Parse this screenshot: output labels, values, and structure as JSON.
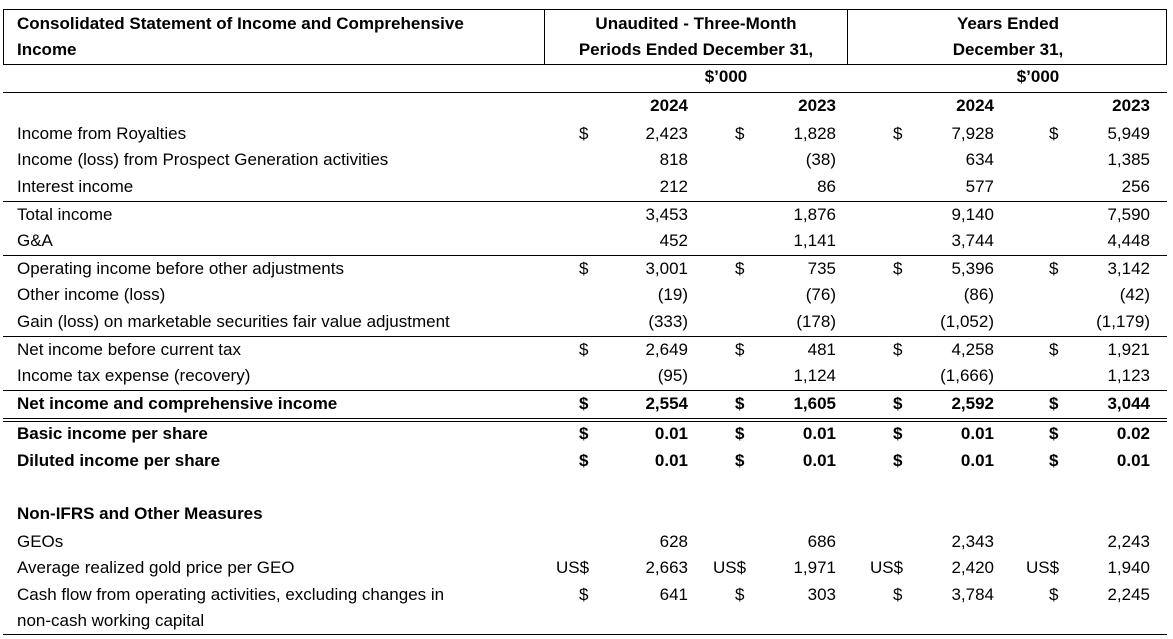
{
  "header": {
    "title_line1": "Consolidated Statement of Income and Comprehensive",
    "title_line2": "Income",
    "q_line1": "Unaudited - Three-Month",
    "q_line2": "Periods Ended December 31,",
    "q_unit": "$’000",
    "y_line1": "Years Ended",
    "y_line2": "December 31,",
    "y_unit": "$’000",
    "col1": "2024",
    "col2": "2023",
    "col3": "2024",
    "col4": "2023"
  },
  "rows": [
    {
      "label": "Income from Royalties",
      "cur": [
        "$",
        "$",
        "$",
        "$"
      ],
      "v": [
        "2,423",
        "1,828",
        "7,928",
        "5,949"
      ]
    },
    {
      "label": "Income (loss) from Prospect Generation activities",
      "cur": [
        "",
        "",
        "",
        ""
      ],
      "v": [
        "818",
        "(38)",
        "634",
        "1,385"
      ]
    },
    {
      "label": "Interest income",
      "cur": [
        "",
        "",
        "",
        ""
      ],
      "v": [
        "212",
        "86",
        "577",
        "256"
      ]
    },
    {
      "label": "Total income",
      "cur": [
        "",
        "",
        "",
        ""
      ],
      "v": [
        "3,453",
        "1,876",
        "9,140",
        "7,590"
      ]
    },
    {
      "label": "G&A",
      "cur": [
        "",
        "",
        "",
        ""
      ],
      "v": [
        "452",
        "1,141",
        "3,744",
        "4,448"
      ]
    },
    {
      "label": "Operating income before other adjustments",
      "cur": [
        "$",
        "$",
        "$",
        "$"
      ],
      "v": [
        "3,001",
        "735",
        "5,396",
        "3,142"
      ]
    },
    {
      "label": "Other income (loss)",
      "cur": [
        "",
        "",
        "",
        ""
      ],
      "v": [
        "(19)",
        "(76)",
        "(86)",
        "(42)"
      ]
    },
    {
      "label": "Gain (loss) on marketable securities fair value adjustment",
      "cur": [
        "",
        "",
        "",
        ""
      ],
      "v": [
        "(333)",
        "(178)",
        "(1,052)",
        "(1,179)"
      ]
    },
    {
      "label": "Net income before current tax",
      "cur": [
        "$",
        "$",
        "$",
        "$"
      ],
      "v": [
        "2,649",
        "481",
        "4,258",
        "1,921"
      ]
    },
    {
      "label": "Income tax expense (recovery)",
      "cur": [
        "",
        "",
        "",
        ""
      ],
      "v": [
        "(95)",
        "1,124",
        "(1,666)",
        "1,123"
      ]
    },
    {
      "label": "Net income and comprehensive income",
      "cur": [
        "$",
        "$",
        "$",
        "$"
      ],
      "v": [
        "2,554",
        "1,605",
        "2,592",
        "3,044"
      ]
    },
    {
      "label": "Basic income per share",
      "cur": [
        "$",
        "$",
        "$",
        "$"
      ],
      "v": [
        "0.01",
        "0.01",
        "0.01",
        "0.02"
      ]
    },
    {
      "label": "Diluted income per share",
      "cur": [
        "$",
        "$",
        "$",
        "$"
      ],
      "v": [
        "0.01",
        "0.01",
        "0.01",
        "0.01"
      ]
    },
    {
      "label": "Non-IFRS and Other Measures",
      "cur": [
        "",
        "",
        "",
        ""
      ],
      "v": [
        "",
        "",
        "",
        ""
      ]
    },
    {
      "label": "GEOs",
      "cur": [
        "",
        "",
        "",
        ""
      ],
      "v": [
        "628",
        "686",
        "2,343",
        "2,243"
      ]
    },
    {
      "label": "Average realized gold price per GEO",
      "cur": [
        "US$",
        "US$",
        "US$",
        "US$"
      ],
      "v": [
        "2,663",
        "1,971",
        "2,420",
        "1,940"
      ]
    },
    {
      "label": "Cash flow from operating activities, excluding changes in",
      "label2": "non-cash working capital",
      "cur": [
        "$",
        "$",
        "$",
        "$"
      ],
      "v": [
        "641",
        "303",
        "3,784",
        "2,245"
      ]
    }
  ]
}
